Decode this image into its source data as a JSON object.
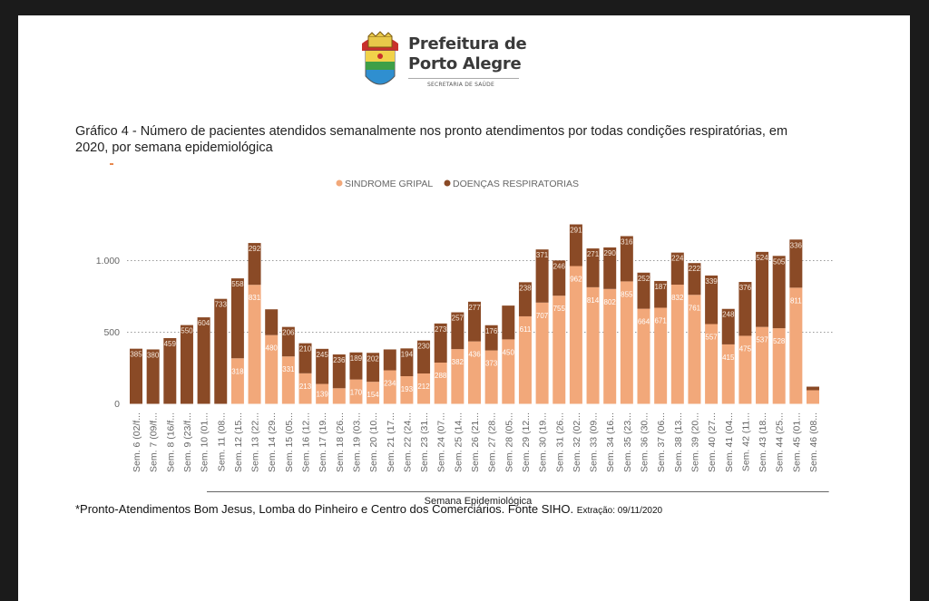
{
  "logo": {
    "line1": "Prefeitura de",
    "line2": "Porto Alegre",
    "line3": "SECRETARIA DE SAÚDE"
  },
  "title": "Gráfico 4 - Número de pacientes atendidos semanalmente nos pronto atendimentos por todas condições respiratórias, em 2020, por semana epidemiológica",
  "footnote": {
    "main": "*Pronto-Atendimentos Bom Jesus, Lomba do Pinheiro e Centro dos Comerciários. Fonte SIHO.",
    "extraction": "Extração: 09/11/2020"
  },
  "colors": {
    "sindrome_gripal": "#f2a87a",
    "doencas_respiratorias": "#8a4a26"
  },
  "chart_data": {
    "type": "bar",
    "stacked": true,
    "xlabel": "Semana Epidemiológica",
    "ylabel": "",
    "ylim": [
      0,
      1300
    ],
    "yticks": [
      0,
      500,
      1000
    ],
    "ytick_labels": [
      "0",
      "500",
      "1.000"
    ],
    "grid": "horizontal dotted",
    "legend_position": "top",
    "categories": [
      "Sem. 6 (02/f...",
      "Sem. 7 (09/f...",
      "Sem. 8 (16/f...",
      "Sem. 9 (23/f...",
      "Sem. 10 (01...",
      "Sem. 11 (08...",
      "Sem. 12 (15...",
      "Sem. 13 (22...",
      "Sem. 14 (29...",
      "Sem. 15 (05...",
      "Sem. 16 (12...",
      "Sem. 17 (19...",
      "Sem. 18 (26...",
      "Sem. 19 (03...",
      "Sem. 20 (10...",
      "Sem. 21 (17...",
      "Sem. 22 (24...",
      "Sem. 23 (31...",
      "Sem. 24 (07...",
      "Sem. 25 (14...",
      "Sem. 26 (21...",
      "Sem. 27 (28...",
      "Sem. 28 (05...",
      "Sem. 29 (12...",
      "Sem. 30 (19...",
      "Sem. 31 (26...",
      "Sem. 32 (02...",
      "Sem. 33 (09...",
      "Sem. 34 (16...",
      "Sem. 35 (23...",
      "Sem. 36 (30...",
      "Sem. 37 (06...",
      "Sem. 38 (13...",
      "Sem. 39 (20...",
      "Sem. 40 (27...",
      "Sem. 41 (04...",
      "Sem. 42 (11...",
      "Sem. 43 (18...",
      "Sem. 44 (25...",
      "Sem. 45 (01...",
      "Sem. 46 (08..."
    ],
    "series": [
      {
        "name": "SINDROME GRIPAL",
        "values": [
          0,
          0,
          0,
          0,
          0,
          0,
          318,
          831,
          480,
          331,
          213,
          139,
          109,
          170,
          154,
          234,
          193,
          212,
          288,
          382,
          436,
          373,
          450,
          611,
          707,
          755,
          962,
          814,
          802,
          855,
          664,
          671,
          832,
          761,
          557,
          415,
          475,
          537,
          528,
          811,
          95
        ],
        "labels": [
          "",
          "",
          "",
          "",
          "",
          "",
          "318",
          "831",
          "480",
          "331",
          "213",
          "139",
          "",
          "170",
          "154",
          "234",
          "193",
          "212",
          "288",
          "382",
          "436",
          "373",
          "450",
          "611",
          "707",
          "755",
          "962",
          "814",
          "802",
          "855",
          "664",
          "671",
          "832",
          "761",
          "557",
          "415",
          "475",
          "537",
          "528",
          "811",
          ""
        ]
      },
      {
        "name": "DOENÇAS RESPIRATORIAS",
        "values": [
          385,
          380,
          459,
          550,
          604,
          733,
          558,
          292,
          180,
          206,
          210,
          245,
          236,
          189,
          202,
          146,
          194,
          230,
          273,
          257,
          277,
          176,
          236,
          238,
          371,
          246,
          291,
          271,
          290,
          316,
          252,
          187,
          224,
          222,
          339,
          248,
          376,
          524,
          505,
          336,
          25
        ],
        "labels": [
          "385",
          "380",
          "459",
          "550",
          "604",
          "733",
          "558",
          "292",
          "",
          "206",
          "210",
          "245",
          "236",
          "189",
          "202",
          "",
          "194",
          "230",
          "273",
          "257",
          "277",
          "176",
          "",
          "238",
          "371",
          "246",
          "291",
          "271",
          "290",
          "316",
          "252",
          "187",
          "224",
          "222",
          "339",
          "248",
          "376",
          "524",
          "505",
          "336",
          ""
        ]
      }
    ]
  }
}
